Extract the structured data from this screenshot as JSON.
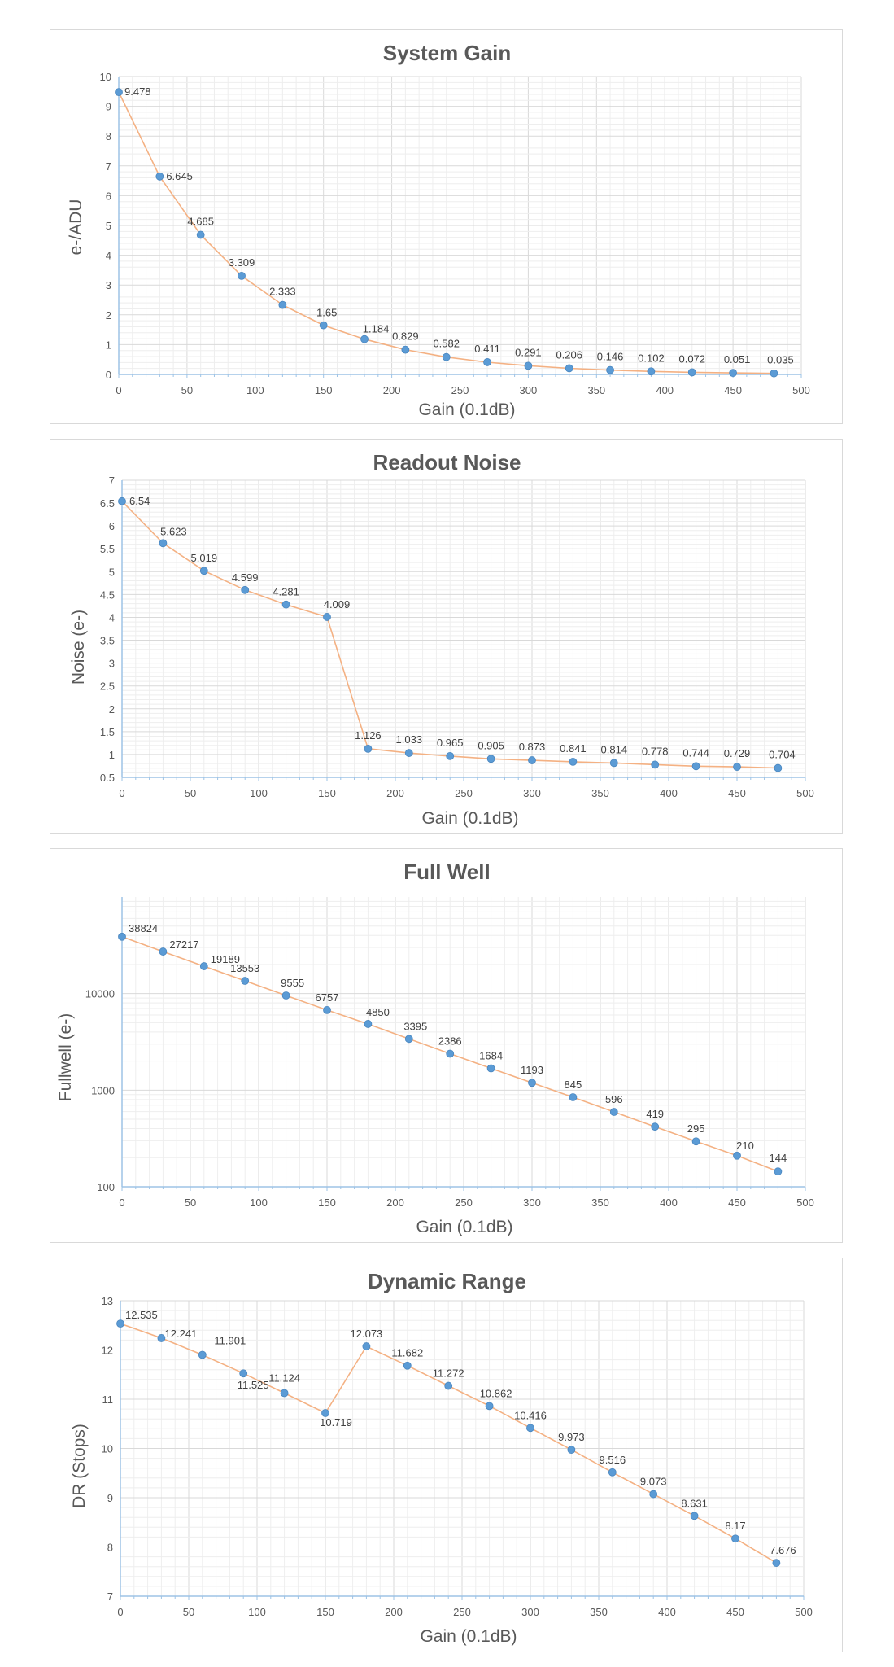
{
  "colors": {
    "line": "#F4B183",
    "marker": "#5B9BD5",
    "marker_stroke": "#4A86BF",
    "grid_major": "#D9D9D9",
    "grid_minor": "#EEEEEE",
    "axis": "#9DC3E6",
    "text": "#595959"
  },
  "chart_data": [
    {
      "type": "line",
      "title": "System Gain",
      "xlabel": "Gain (0.1dB)",
      "ylabel": "e-/ADU",
      "xlim": [
        0,
        500
      ],
      "ylim": [
        0,
        10
      ],
      "y_scale": "linear",
      "xticks": [
        0,
        50,
        100,
        150,
        200,
        250,
        300,
        350,
        400,
        450,
        500
      ],
      "yticks": [
        0,
        1,
        2,
        3,
        4,
        5,
        6,
        7,
        8,
        9,
        10
      ],
      "ytick_labels": [
        "0",
        "1",
        "2",
        "3",
        "4",
        "5",
        "6",
        "7",
        "8",
        "9",
        "10"
      ],
      "grid": true,
      "x": [
        0,
        30,
        60,
        90,
        120,
        150,
        180,
        210,
        240,
        270,
        300,
        330,
        360,
        390,
        420,
        450,
        480
      ],
      "y": [
        9.478,
        6.645,
        4.685,
        3.309,
        2.333,
        1.65,
        1.184,
        0.829,
        0.582,
        0.411,
        0.291,
        0.206,
        0.146,
        0.102,
        0.072,
        0.051,
        0.035
      ],
      "labels": [
        "9.478",
        "6.645",
        "4.685",
        "3.309",
        "2.333",
        "1.65",
        "1.184",
        "0.829",
        "0.582",
        "0.411",
        "0.291",
        "0.206",
        "0.146",
        "0.102",
        "0.072",
        "0.051",
        "0.035"
      ]
    },
    {
      "type": "line",
      "title": "Readout Noise",
      "xlabel": "Gain (0.1dB)",
      "ylabel": "Noise (e-)",
      "xlim": [
        0,
        500
      ],
      "ylim": [
        0.5,
        7
      ],
      "y_scale": "linear",
      "xticks": [
        0,
        50,
        100,
        150,
        200,
        250,
        300,
        350,
        400,
        450,
        500
      ],
      "yticks": [
        0.5,
        1,
        1.5,
        2,
        2.5,
        3,
        3.5,
        4,
        4.5,
        5,
        5.5,
        6,
        6.5,
        7
      ],
      "ytick_labels": [
        "0.5",
        "1",
        "1.5",
        "2",
        "2.5",
        "3",
        "3.5",
        "4",
        "4.5",
        "5",
        "5.5",
        "6",
        "6.5",
        "7"
      ],
      "grid": true,
      "x": [
        0,
        30,
        60,
        90,
        120,
        150,
        180,
        210,
        240,
        270,
        300,
        330,
        360,
        390,
        420,
        450,
        480
      ],
      "y": [
        6.54,
        5.623,
        5.019,
        4.599,
        4.281,
        4.009,
        1.126,
        1.033,
        0.965,
        0.905,
        0.873,
        0.841,
        0.814,
        0.778,
        0.744,
        0.729,
        0.704
      ],
      "labels": [
        "6.54",
        "5.623",
        "5.019",
        "4.599",
        "4.281",
        "4.009",
        "1.126",
        "1.033",
        "0.965",
        "0.905",
        "0.873",
        "0.841",
        "0.814",
        "0.778",
        "0.744",
        "0.729",
        "0.704"
      ]
    },
    {
      "type": "line",
      "title": "Full Well",
      "xlabel": "Gain (0.1dB)",
      "ylabel": "Fullwell (e-)",
      "xlim": [
        0,
        500
      ],
      "ylim": [
        100,
        100000
      ],
      "y_scale": "log",
      "xticks": [
        0,
        50,
        100,
        150,
        200,
        250,
        300,
        350,
        400,
        450,
        500
      ],
      "yticks": [
        100,
        1000,
        10000
      ],
      "ytick_labels": [
        "100",
        "1000",
        "10000"
      ],
      "grid": true,
      "x": [
        0,
        30,
        60,
        90,
        120,
        150,
        180,
        210,
        240,
        270,
        300,
        330,
        360,
        390,
        420,
        450,
        480
      ],
      "y": [
        38824,
        27217,
        19189,
        13553,
        9555,
        6757,
        4850,
        3395,
        2386,
        1684,
        1193,
        845,
        596,
        419,
        295,
        210,
        144
      ],
      "labels": [
        "38824",
        "27217",
        "19189",
        "13553",
        "9555",
        "6757",
        "4850",
        "3395",
        "2386",
        "1684",
        "1193",
        "845",
        "596",
        "419",
        "295",
        "210",
        "144"
      ]
    },
    {
      "type": "line",
      "title": "Dynamic Range",
      "xlabel": "Gain (0.1dB)",
      "ylabel": "DR (Stops)",
      "xlim": [
        0,
        500
      ],
      "ylim": [
        7,
        13
      ],
      "y_scale": "linear",
      "xticks": [
        0,
        50,
        100,
        150,
        200,
        250,
        300,
        350,
        400,
        450,
        500
      ],
      "yticks": [
        7,
        8,
        9,
        10,
        11,
        12,
        13
      ],
      "ytick_labels": [
        "7",
        "8",
        "9",
        "10",
        "11",
        "12",
        "13"
      ],
      "grid": true,
      "x": [
        0,
        30,
        60,
        90,
        120,
        150,
        180,
        210,
        240,
        270,
        300,
        330,
        360,
        390,
        420,
        450,
        480
      ],
      "y": [
        12.535,
        12.241,
        11.901,
        11.525,
        11.124,
        10.719,
        12.073,
        11.682,
        11.272,
        10.862,
        10.416,
        9.973,
        9.516,
        9.073,
        8.631,
        8.17,
        7.676
      ],
      "labels": [
        "12.535",
        "12.241",
        "11.901",
        "11.525",
        "11.124",
        "10.719",
        "12.073",
        "11.682",
        "11.272",
        "10.862",
        "10.416",
        "9.973",
        "9.516",
        "9.073",
        "8.631",
        "8.17",
        "7.676"
      ]
    }
  ]
}
